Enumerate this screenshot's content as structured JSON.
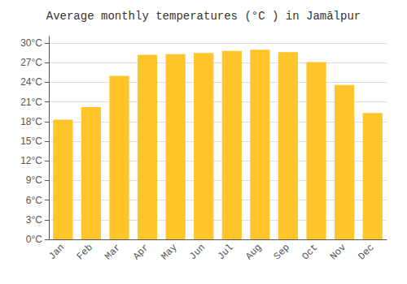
{
  "chart_data": {
    "type": "bar",
    "title": "Average monthly temperatures (°C ) in Jamālpur",
    "categories": [
      "Jan",
      "Feb",
      "Mar",
      "Apr",
      "May",
      "Jun",
      "Jul",
      "Aug",
      "Sep",
      "Oct",
      "Nov",
      "Dec"
    ],
    "values": [
      18.3,
      20.2,
      25.0,
      28.2,
      28.3,
      28.5,
      28.8,
      29.0,
      28.6,
      27.1,
      23.6,
      19.3
    ],
    "color": "#FFC52A",
    "ylim": [
      0,
      31
    ],
    "yticks": [
      {
        "value": 0,
        "label": "0°C"
      },
      {
        "value": 3,
        "label": "3°C"
      },
      {
        "value": 6,
        "label": "6°C"
      },
      {
        "value": 9,
        "label": "9°C"
      },
      {
        "value": 12,
        "label": "12°C"
      },
      {
        "value": 15,
        "label": "15°C"
      },
      {
        "value": 18,
        "label": "18°C"
      },
      {
        "value": 21,
        "label": "21°C"
      },
      {
        "value": 24,
        "label": "24°C"
      },
      {
        "value": 27,
        "label": "27°C"
      },
      {
        "value": 30,
        "label": "30°C"
      }
    ],
    "grid": true
  }
}
